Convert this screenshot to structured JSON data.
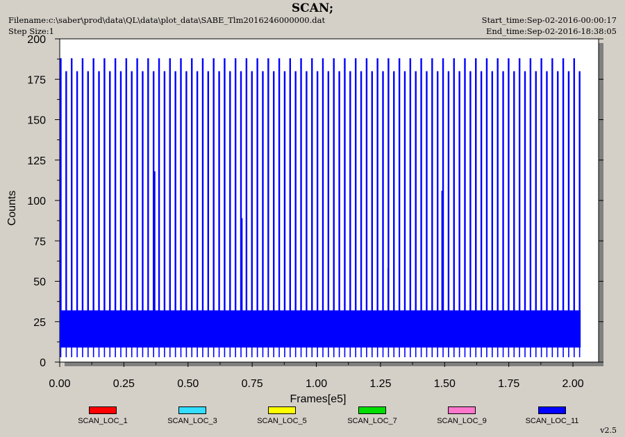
{
  "window": {
    "title": "SCAN;",
    "filename": "Filename:c:\\saber\\prod\\data\\QL\\data\\plot_data\\SABE_Tlm2016246000000.dat",
    "step_size": "Step Size:1",
    "start_time": "Start_time:Sep-02-2016-00:00:17",
    "end_time": "End_time:Sep-02-2016-18:38:05",
    "version": "v2.5"
  },
  "chart_data": {
    "type": "line",
    "title": "SCAN;",
    "xlabel": "Frames[e5]",
    "ylabel": "Counts",
    "xlim": [
      0,
      2.1
    ],
    "ylim": [
      0,
      200
    ],
    "x_ticks": [
      "0.00",
      "0.25",
      "0.50",
      "0.75",
      "1.00",
      "1.25",
      "1.50",
      "1.75",
      "2.00"
    ],
    "y_ticks": [
      "0",
      "25",
      "50",
      "75",
      "100",
      "125",
      "150",
      "175",
      "200"
    ],
    "grid": false,
    "legend_position": "bottom",
    "x_range_of_data": [
      0.0,
      2.03
    ],
    "series": [
      {
        "name": "SCAN_LOC_1",
        "color": "#ff0000",
        "pattern": "not visible (hidden behind SCAN_LOC_11)"
      },
      {
        "name": "SCAN_LOC_3",
        "color": "#33ddff",
        "pattern": "not visible (hidden behind SCAN_LOC_11)"
      },
      {
        "name": "SCAN_LOC_5",
        "color": "#ffff00",
        "pattern": "not visible (hidden behind SCAN_LOC_11)"
      },
      {
        "name": "SCAN_LOC_7",
        "color": "#00dd00",
        "pattern": "not visible (hidden behind SCAN_LOC_11)"
      },
      {
        "name": "SCAN_LOC_9",
        "color": "#ff77cc",
        "pattern": "not visible (hidden behind SCAN_LOC_11)"
      },
      {
        "name": "SCAN_LOC_11",
        "color": "#0000ff",
        "pattern": "periodic scan; dense band ~9-32 counts with spikes to ~180, every other spike to ~188",
        "baseline_band": [
          9,
          32
        ],
        "spike_peaks": [
          180,
          188
        ],
        "spike_count_approx": 96,
        "mid_level_spikes": [
          {
            "x": 0.37,
            "y": 118
          },
          {
            "x": 0.71,
            "y": 89
          },
          {
            "x": 1.28,
            "y": 58
          },
          {
            "x": 1.49,
            "y": 106
          },
          {
            "x": 1.77,
            "y": 51
          }
        ]
      }
    ]
  }
}
